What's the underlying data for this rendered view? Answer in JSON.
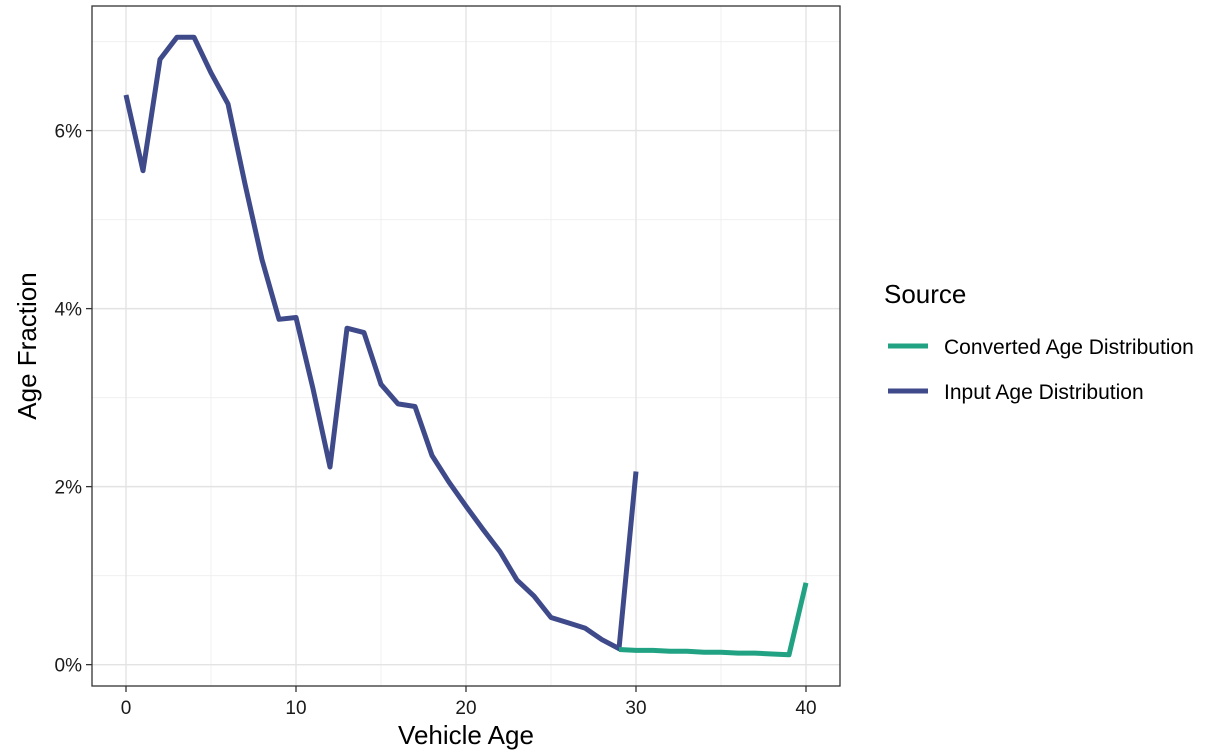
{
  "chart_data": {
    "type": "line",
    "title": "",
    "xlabel": "Vehicle Age",
    "ylabel": "Age Fraction",
    "xlim": [
      -2,
      42
    ],
    "ylim": [
      -0.0024,
      0.074
    ],
    "x_ticks": [
      0,
      10,
      20,
      30,
      40
    ],
    "x_tick_labels": [
      "0",
      "10",
      "20",
      "30",
      "40"
    ],
    "y_ticks": [
      0,
      0.02,
      0.04,
      0.06
    ],
    "y_tick_labels": [
      "0%",
      "2%",
      "4%",
      "6%"
    ],
    "grid": true,
    "legend": {
      "title": "Source",
      "position": "right"
    },
    "series": [
      {
        "name": "Converted Age Distribution",
        "color": "#21a383",
        "x": [
          29,
          30,
          31,
          32,
          33,
          34,
          35,
          36,
          37,
          38,
          39,
          40
        ],
        "y": [
          0.0017,
          0.0016,
          0.0016,
          0.0015,
          0.0015,
          0.0014,
          0.0014,
          0.0013,
          0.0013,
          0.0012,
          0.0011,
          0.0092
        ]
      },
      {
        "name": "Input Age Distribution",
        "color": "#3f4a8a",
        "x": [
          0,
          1,
          2,
          3,
          4,
          5,
          6,
          7,
          8,
          9,
          10,
          11,
          12,
          13,
          14,
          15,
          16,
          17,
          18,
          19,
          20,
          21,
          22,
          23,
          24,
          25,
          26,
          27,
          28,
          29,
          30
        ],
        "y": [
          0.064,
          0.0555,
          0.068,
          0.0705,
          0.0705,
          0.0665,
          0.063,
          0.054,
          0.0455,
          0.0388,
          0.039,
          0.031,
          0.0222,
          0.0378,
          0.0373,
          0.0315,
          0.0293,
          0.029,
          0.0235,
          0.0205,
          0.0178,
          0.0152,
          0.0127,
          0.0095,
          0.0077,
          0.0053,
          0.0047,
          0.0041,
          0.0028,
          0.0018,
          0.0217
        ]
      }
    ]
  }
}
